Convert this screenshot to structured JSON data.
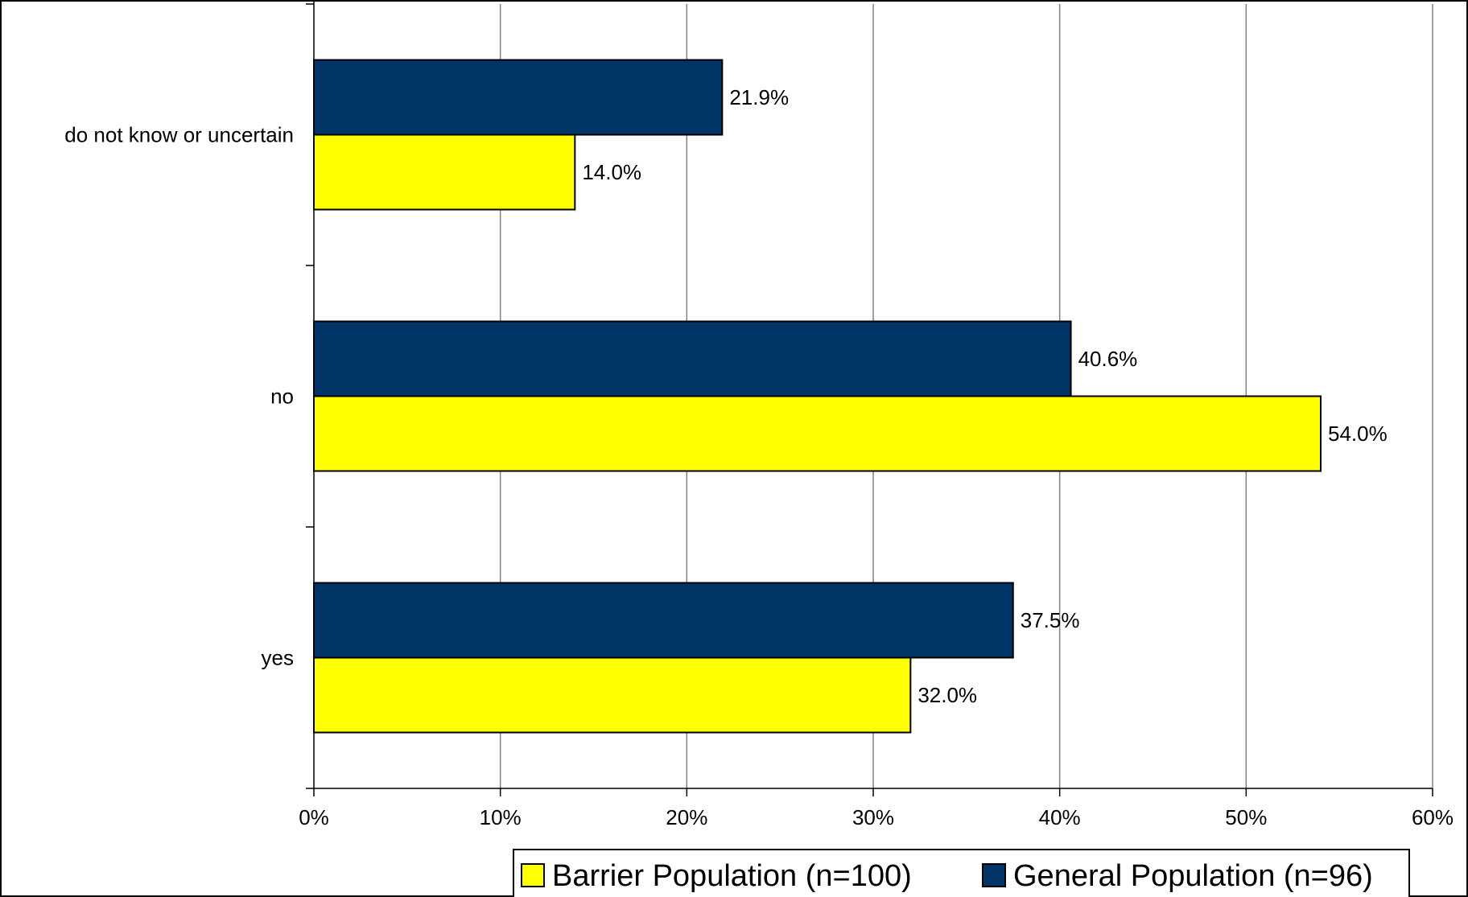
{
  "chart_data": {
    "type": "bar",
    "orientation": "horizontal",
    "categories": [
      "do not know or uncertain",
      "no",
      "yes"
    ],
    "series": [
      {
        "name": "General Population (n=96)",
        "values": [
          21.9,
          40.6,
          37.5
        ],
        "value_labels": [
          "21.9%",
          "40.6%",
          "37.5%"
        ],
        "color": "#003366"
      },
      {
        "name": "Barrier Population (n=100)",
        "values": [
          14.0,
          54.0,
          32.0
        ],
        "value_labels": [
          "14.0%",
          "54.0%",
          "32.0%"
        ],
        "color": "#ffff00"
      }
    ],
    "xlim": [
      0,
      60
    ],
    "xticks": [
      0,
      10,
      20,
      30,
      40,
      50,
      60
    ],
    "xtick_labels": [
      "0%",
      "10%",
      "20%",
      "30%",
      "40%",
      "50%",
      "60%"
    ],
    "legend_order": [
      "Barrier Population (n=100)",
      "General Population (n=96)"
    ],
    "legend_position": "bottom-right",
    "grid": true,
    "title": "",
    "xlabel": "",
    "ylabel": ""
  }
}
